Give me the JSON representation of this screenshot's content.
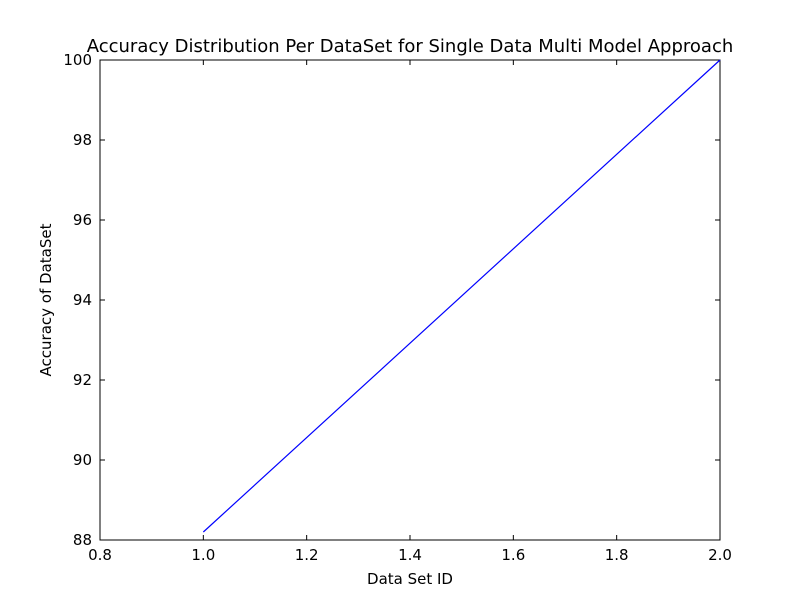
{
  "chart_data": {
    "type": "line",
    "title": "Accuracy Distribution Per DataSet for Single Data Multi Model Approach",
    "xlabel": "Data Set ID",
    "ylabel": "Accuracy of DataSet",
    "xlim": [
      0.8,
      2.0
    ],
    "ylim": [
      88,
      100
    ],
    "x_ticks": [
      0.8,
      1.0,
      1.2,
      1.4,
      1.6,
      1.8,
      2.0
    ],
    "x_tick_labels": [
      "0.8",
      "1.0",
      "1.2",
      "1.4",
      "1.6",
      "1.8",
      "2.0"
    ],
    "y_ticks": [
      88,
      90,
      92,
      94,
      96,
      98,
      100
    ],
    "y_tick_labels": [
      "88",
      "90",
      "92",
      "94",
      "96",
      "98",
      "100"
    ],
    "grid": false,
    "series": [
      {
        "x": [
          1.0,
          2.0
        ],
        "y": [
          88.2,
          100.0
        ],
        "color": "#0000ff"
      }
    ]
  }
}
